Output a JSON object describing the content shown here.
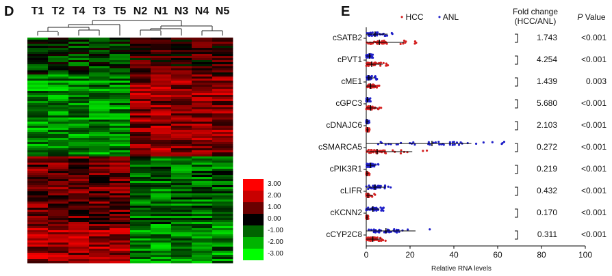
{
  "panel_d": {
    "letter": "D",
    "columns": [
      "T1",
      "T2",
      "T4",
      "T3",
      "T5",
      "N2",
      "N1",
      "N3",
      "N4",
      "N5"
    ],
    "color_scale": {
      "labels": [
        "3.00",
        "2.00",
        "1.00",
        "0.00",
        "-1.00",
        "-2.00",
        "-3.00"
      ],
      "colors": [
        "#ff0000",
        "#c80000",
        "#6a0000",
        "#000000",
        "#006400",
        "#00b400",
        "#00ff00"
      ]
    }
  },
  "panel_e": {
    "letter": "E",
    "legend": [
      {
        "label": "HCC",
        "color": "#d42020"
      },
      {
        "label": "ANL",
        "color": "#2020c8"
      }
    ],
    "header_fold": "Fold change (HCC/ANL)",
    "header_p": "P Value",
    "xlabel": "Relative RNA levels",
    "xticks": [
      "0",
      "20",
      "40",
      "60",
      "80",
      "100"
    ]
  },
  "chart_data": [
    {
      "type": "heatmap",
      "title": "",
      "columns": [
        "T1",
        "T2",
        "T4",
        "T3",
        "T5",
        "N2",
        "N1",
        "N3",
        "N4",
        "N5"
      ],
      "color_range": [
        -3,
        3
      ],
      "legend_ticks": [
        3,
        2,
        1,
        0,
        -1,
        -2,
        -3
      ]
    },
    {
      "type": "scatter",
      "xlabel": "Relative RNA levels",
      "xlim": [
        0,
        100
      ],
      "categories": [
        "cSATB2",
        "cPVT1",
        "cME1",
        "cGPC3",
        "cDNAJC6",
        "cSMARCA5",
        "cPIK3R1",
        "cLIFR",
        "cKCNN2",
        "cCYP2C8"
      ],
      "fold_change": [
        "1.743",
        "4.254",
        "1.439",
        "5.680",
        "2.103",
        "0.272",
        "0.219",
        "0.432",
        "0.170",
        "0.311"
      ],
      "p_value": [
        "<0.001",
        "<0.001",
        "0.003",
        "<0.001",
        "<0.001",
        "<0.001",
        "<0.001",
        "<0.001",
        "<0.001",
        "<0.001"
      ],
      "series": [
        {
          "name": "HCC",
          "color": "#d42020",
          "median": [
            6,
            2.5,
            2,
            2,
            0.5,
            5,
            0.3,
            0.8,
            0.3,
            3
          ],
          "max": [
            23,
            10,
            6,
            7,
            1.5,
            28,
            1.5,
            4,
            1,
            9
          ]
        },
        {
          "name": "ANL",
          "color": "#2020c8",
          "median": [
            4,
            1.5,
            1.2,
            0.5,
            0.3,
            30,
            2,
            4,
            3,
            9
          ],
          "max": [
            13,
            3,
            5,
            2,
            1.5,
            64,
            6,
            12,
            8,
            30
          ]
        }
      ]
    }
  ]
}
